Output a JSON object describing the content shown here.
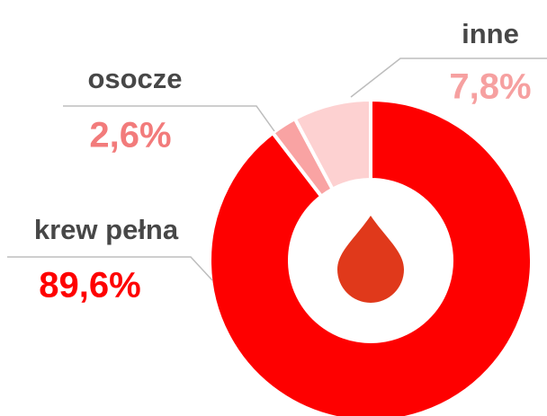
{
  "chart_data": {
    "type": "pie",
    "donut": true,
    "categories": [
      "krew pełna",
      "osocze",
      "inne"
    ],
    "values": [
      89.6,
      2.6,
      7.8
    ],
    "value_labels": [
      "89,6%",
      "2,6%",
      "7,8%"
    ],
    "colors": [
      "#fe0000",
      "#f9a3a3",
      "#fdd1d1"
    ],
    "label_colors": [
      "#fe0000",
      "#f27b7b",
      "#f6a0a0"
    ]
  }
}
